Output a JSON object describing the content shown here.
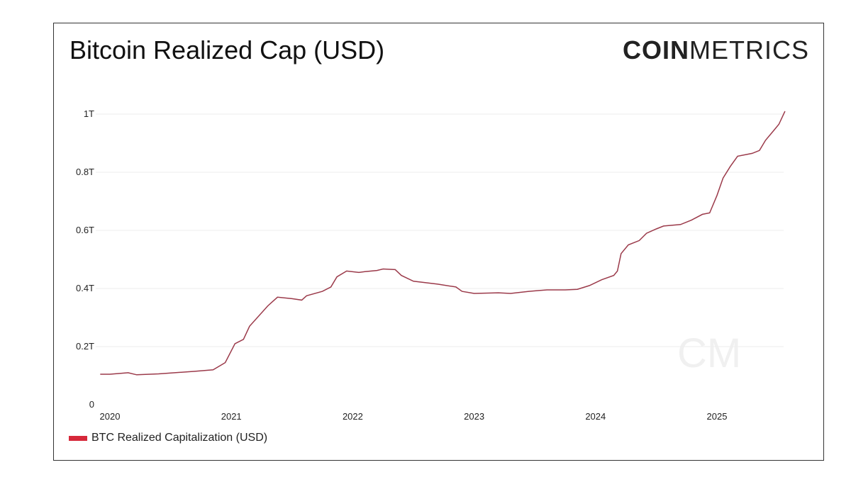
{
  "title": "Bitcoin Realized Cap (USD)",
  "logo": {
    "bold": "COIN",
    "light": "METRICS",
    "watermark": "CM"
  },
  "colors": {
    "line": "#9b3a4a",
    "legend": "#d6283a",
    "grid": "#eeeeee"
  },
  "chart_data": {
    "type": "line",
    "title": "Bitcoin Realized Cap (USD)",
    "xlabel": "",
    "ylabel": "",
    "ylim": [
      0,
      1.0
    ],
    "xlim": [
      2019.92,
      2025.56
    ],
    "y_ticks": [
      {
        "v": 0,
        "label": "0"
      },
      {
        "v": 0.2,
        "label": "0.2T"
      },
      {
        "v": 0.4,
        "label": "0.4T"
      },
      {
        "v": 0.6,
        "label": "0.6T"
      },
      {
        "v": 0.8,
        "label": "0.8T"
      },
      {
        "v": 1.0,
        "label": "1T"
      }
    ],
    "x_ticks": [
      {
        "v": 2020,
        "label": "2020"
      },
      {
        "v": 2021,
        "label": "2021"
      },
      {
        "v": 2022,
        "label": "2022"
      },
      {
        "v": 2023,
        "label": "2023"
      },
      {
        "v": 2024,
        "label": "2024"
      },
      {
        "v": 2025,
        "label": "2025"
      }
    ],
    "grid": true,
    "legend": "bottom-left",
    "series": [
      {
        "name": "BTC Realized Capitalization (USD)",
        "unit": "trillion USD",
        "x": [
          2019.92,
          2020.0,
          2020.15,
          2020.22,
          2020.4,
          2020.7,
          2020.85,
          2020.95,
          2021.03,
          2021.1,
          2021.15,
          2021.3,
          2021.38,
          2021.5,
          2021.58,
          2021.62,
          2021.75,
          2021.82,
          2021.87,
          2021.95,
          2022.05,
          2022.1,
          2022.2,
          2022.25,
          2022.35,
          2022.4,
          2022.5,
          2022.7,
          2022.85,
          2022.9,
          2023.0,
          2023.2,
          2023.3,
          2023.45,
          2023.6,
          2023.75,
          2023.85,
          2023.95,
          2024.05,
          2024.15,
          2024.18,
          2024.21,
          2024.27,
          2024.36,
          2024.42,
          2024.5,
          2024.56,
          2024.7,
          2024.79,
          2024.88,
          2024.94,
          2025.0,
          2025.05,
          2025.11,
          2025.17,
          2025.29,
          2025.35,
          2025.4,
          2025.46,
          2025.51,
          2025.56
        ],
        "y": [
          0.105,
          0.105,
          0.11,
          0.103,
          0.106,
          0.115,
          0.12,
          0.145,
          0.21,
          0.225,
          0.27,
          0.34,
          0.37,
          0.365,
          0.36,
          0.375,
          0.39,
          0.405,
          0.44,
          0.46,
          0.455,
          0.458,
          0.462,
          0.467,
          0.465,
          0.445,
          0.425,
          0.415,
          0.405,
          0.39,
          0.383,
          0.385,
          0.383,
          0.39,
          0.395,
          0.395,
          0.397,
          0.41,
          0.43,
          0.445,
          0.46,
          0.52,
          0.55,
          0.565,
          0.59,
          0.605,
          0.615,
          0.62,
          0.635,
          0.655,
          0.66,
          0.72,
          0.78,
          0.82,
          0.855,
          0.865,
          0.875,
          0.91,
          0.94,
          0.965,
          1.01
        ]
      }
    ]
  }
}
